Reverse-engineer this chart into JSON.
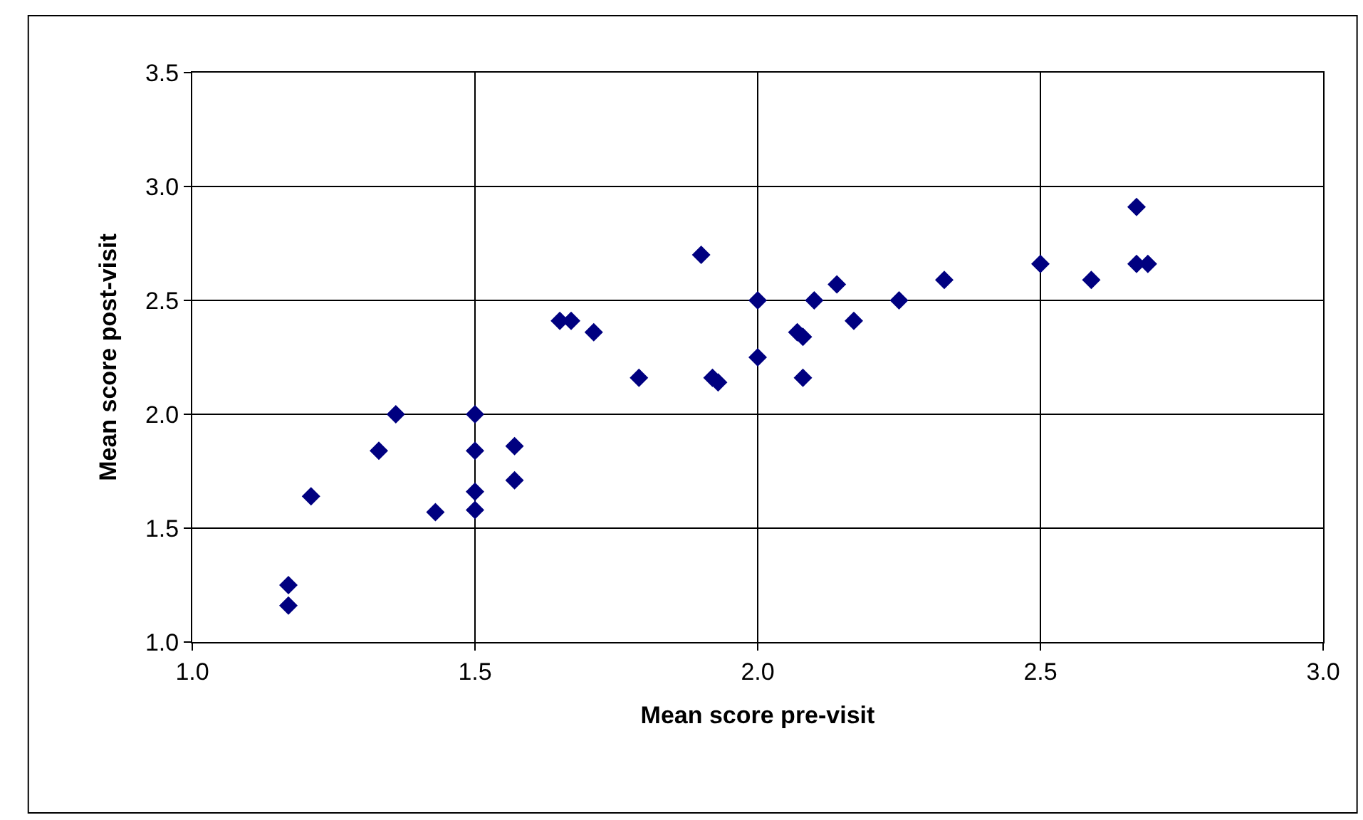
{
  "chart_data": {
    "type": "scatter",
    "xlabel": "Mean score pre-visit",
    "ylabel": "Mean score post-visit",
    "x": [
      1.17,
      1.17,
      1.21,
      1.33,
      1.36,
      1.43,
      1.5,
      1.5,
      1.5,
      1.5,
      1.57,
      1.57,
      1.65,
      1.67,
      1.71,
      1.79,
      1.9,
      1.92,
      1.93,
      2.0,
      2.0,
      2.07,
      2.08,
      2.08,
      2.1,
      2.14,
      2.17,
      2.25,
      2.33,
      2.5,
      2.59,
      2.67,
      2.67,
      2.69
    ],
    "series": [
      {
        "color": "#000080",
        "values": [
          1.25,
          1.16,
          1.64,
          1.84,
          2.0,
          1.57,
          2.0,
          1.84,
          1.66,
          1.58,
          1.86,
          1.71,
          2.41,
          2.41,
          2.36,
          2.16,
          2.7,
          2.16,
          2.14,
          2.5,
          2.25,
          2.36,
          2.34,
          2.16,
          2.5,
          2.57,
          2.41,
          2.5,
          2.59,
          2.66,
          2.59,
          2.91,
          2.66,
          2.66
        ]
      }
    ],
    "xlim": [
      1.0,
      3.0
    ],
    "xticks": [
      {
        "value": 1.0,
        "label": "1.0"
      },
      {
        "value": 1.5,
        "label": "1.5"
      },
      {
        "value": 2.0,
        "label": "2.0"
      },
      {
        "value": 2.5,
        "label": "2.5"
      },
      {
        "value": 3.0,
        "label": "3.0"
      }
    ],
    "ylim": [
      1.0,
      3.5
    ],
    "yticks": [
      {
        "value": 1.0,
        "label": "1.0"
      },
      {
        "value": 1.5,
        "label": "1.5"
      },
      {
        "value": 2.0,
        "label": "2.0"
      },
      {
        "value": 2.5,
        "label": "2.5"
      },
      {
        "value": 3.0,
        "label": "3.0"
      },
      {
        "value": 3.5,
        "label": "3.5"
      }
    ],
    "grid": true,
    "marker": "diamond",
    "legend": false
  }
}
